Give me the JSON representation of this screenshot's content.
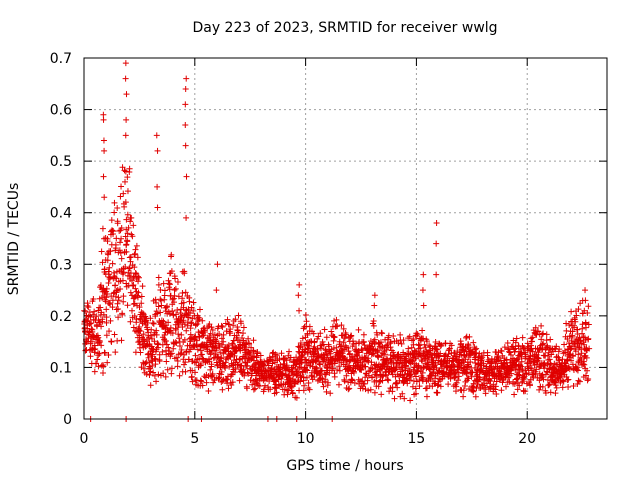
{
  "chart_data": {
    "type": "scatter",
    "title": "Day 223 of 2023, SRMTID for receiver wwlg",
    "xlabel": "GPS time / hours",
    "ylabel": "SRMTID / TECUs",
    "xlim": [
      0,
      23.6
    ],
    "ylim": [
      0,
      0.7
    ],
    "xticks": [
      0,
      5,
      10,
      15,
      20
    ],
    "xtick_labels": [
      "0",
      "5",
      "10",
      "15",
      "20"
    ],
    "yticks": [
      0,
      0.1,
      0.2,
      0.3,
      0.4,
      0.5,
      0.6,
      0.7
    ],
    "ytick_labels": [
      "0",
      "0.1",
      "0.2",
      "0.3",
      "0.4",
      "0.5",
      "0.6",
      "0.7"
    ],
    "grid": true,
    "marker": "+",
    "series_color": "#e00000",
    "envelope": {
      "x": [
        0,
        0.5,
        1.0,
        1.5,
        2.0,
        2.5,
        3.0,
        3.5,
        4.0,
        4.5,
        5.0,
        5.5,
        6.0,
        6.5,
        7.0,
        7.5,
        8.0,
        8.5,
        9.0,
        9.5,
        10.0,
        10.5,
        11.0,
        11.5,
        12.0,
        12.5,
        13.0,
        13.5,
        14.0,
        14.5,
        15.0,
        15.5,
        16.0,
        16.5,
        17.0,
        17.5,
        18.0,
        18.5,
        19.0,
        19.5,
        20.0,
        20.5,
        21.0,
        21.5,
        22.0,
        22.5,
        22.8
      ],
      "median": [
        0.19,
        0.16,
        0.25,
        0.3,
        0.35,
        0.2,
        0.13,
        0.18,
        0.2,
        0.18,
        0.15,
        0.13,
        0.12,
        0.12,
        0.13,
        0.1,
        0.09,
        0.09,
        0.09,
        0.08,
        0.13,
        0.12,
        0.11,
        0.13,
        0.11,
        0.11,
        0.12,
        0.11,
        0.1,
        0.1,
        0.11,
        0.1,
        0.11,
        0.1,
        0.1,
        0.1,
        0.09,
        0.09,
        0.1,
        0.1,
        0.11,
        0.12,
        0.1,
        0.09,
        0.14,
        0.15,
        0.15
      ],
      "spread": [
        0.04,
        0.05,
        0.12,
        0.12,
        0.12,
        0.06,
        0.05,
        0.08,
        0.08,
        0.08,
        0.06,
        0.05,
        0.04,
        0.05,
        0.05,
        0.04,
        0.03,
        0.03,
        0.03,
        0.03,
        0.05,
        0.04,
        0.04,
        0.05,
        0.04,
        0.04,
        0.05,
        0.04,
        0.04,
        0.04,
        0.05,
        0.04,
        0.04,
        0.03,
        0.04,
        0.04,
        0.03,
        0.03,
        0.03,
        0.04,
        0.04,
        0.05,
        0.04,
        0.03,
        0.06,
        0.06,
        0.06
      ]
    },
    "spikes": [
      {
        "x": 0.9,
        "y": [
          0.43,
          0.47,
          0.52,
          0.54,
          0.58,
          0.59
        ]
      },
      {
        "x": 1.9,
        "y": [
          0.48,
          0.55,
          0.58,
          0.63,
          0.66,
          0.69
        ]
      },
      {
        "x": 3.3,
        "y": [
          0.41,
          0.45,
          0.52,
          0.55
        ]
      },
      {
        "x": 4.6,
        "y": [
          0.39,
          0.47,
          0.53,
          0.57,
          0.61,
          0.64,
          0.66
        ]
      },
      {
        "x": 15.9,
        "y": [
          0.28,
          0.34,
          0.38
        ]
      },
      {
        "x": 15.3,
        "y": [
          0.22,
          0.25,
          0.28
        ]
      },
      {
        "x": 9.7,
        "y": [
          0.21,
          0.24,
          0.26
        ]
      },
      {
        "x": 13.1,
        "y": [
          0.19,
          0.22,
          0.24
        ]
      },
      {
        "x": 6.0,
        "y": [
          0.25,
          0.3
        ]
      },
      {
        "x": 22.6,
        "y": [
          0.21,
          0.23,
          0.25
        ]
      }
    ],
    "zero_marks_x": [
      0.3,
      1.9,
      4.7,
      5.3,
      8.3,
      8.7,
      9.6,
      11.2
    ]
  }
}
